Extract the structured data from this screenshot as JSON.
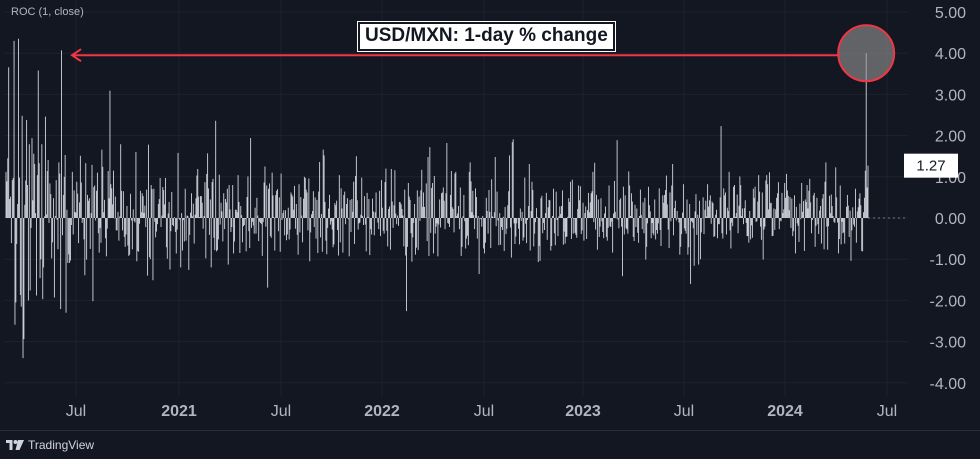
{
  "app": {
    "indicator_label": "ROC (1, close)",
    "brand": "TradingView"
  },
  "colors": {
    "background": "#131722",
    "bar": "#d1d4dc",
    "axis_text": "#b2b5be",
    "annotation": "#f23645",
    "grid": "#1e222d"
  },
  "chart_data": {
    "type": "bar",
    "title": "USD/MXN: 1-day % change",
    "ylim": [
      -4.3,
      5.0
    ],
    "y_ticks": [
      "5.00",
      "4.00",
      "3.00",
      "2.00",
      "1.00",
      "0.00",
      "-1.00",
      "-2.00",
      "-3.00",
      "-4.00"
    ],
    "x_ticks": [
      "Jul",
      "2021",
      "Jul",
      "2022",
      "Jul",
      "2023",
      "Jul",
      "2024",
      "Jul"
    ],
    "x_ticks_bold": [
      false,
      true,
      false,
      true,
      false,
      true,
      false,
      true,
      false
    ],
    "last_value_label": "1.27",
    "last_value": 1.27,
    "peak_value": 4.0,
    "zero_line": 0,
    "grid": true,
    "annotation": {
      "type": "arrow-to-left",
      "highlight": "peak",
      "arrow_target_value": 4.0
    },
    "series": [
      {
        "values": [
          1.12,
          0.89,
          1.45,
          3.66,
          0.46,
          0.52,
          -0.61,
          0.92,
          0.97,
          4.3,
          -2.59,
          -2.05,
          -0.63,
          0.34,
          4.35,
          0.98,
          -1.87,
          -2.15,
          2.48,
          -3.4,
          -2.94,
          0.32,
          0.91,
          2.38,
          0.8,
          -2.0,
          1.79,
          -1.76,
          -0.24,
          1.94,
          0.43,
          1.56,
          1.31,
          0.12,
          -1.88,
          1.04,
          3.58,
          1.33,
          -1.46,
          -1.0,
          1.79,
          -1.97,
          -1.2,
          0.04,
          2.46,
          0.09,
          1.14,
          1.41,
          -0.12,
          0.84,
          0.58,
          -0.98,
          -0.59,
          0.48,
          -1.93,
          0.05,
          0.92,
          -0.04,
          -0.76,
          1.35,
          1.08,
          -2.21,
          4.07,
          -0.42,
          0.56,
          1.0,
          1.53,
          -2.3,
          0.2,
          -1.09,
          -0.88,
          -1.09,
          -1.03,
          -0.17,
          1.12,
          -0.4,
          0.67,
          0.15,
          0.13,
          0.88,
          0.59,
          -0.61,
          0.38,
          1.51,
          0.86,
          -0.12,
          -0.03,
          -0.52,
          -1.39,
          1.33,
          -1.01,
          0.56,
          0.42,
          0.48,
          -0.75,
          0.12,
          1.29,
          -2.02,
          0.75,
          0.79,
          -0.06,
          0.66,
          1.1,
          -0.37,
          -0.84,
          -0.24,
          -0.6,
          1.66,
          1.24,
          0.14,
          0.44,
          -0.49,
          -0.93,
          -0.26,
          1.14,
          0.48,
          3.09,
          0.82,
          0.72,
          0.33,
          1.15,
          -0.01,
          0.52,
          -0.3,
          -0.3,
          0.15,
          -0.55,
          0.04,
          1.79,
          0.66,
          -0.3,
          0.65,
          -0.46,
          -0.7,
          -0.4,
          0.29,
          -0.67,
          -0.92,
          -0.89,
          0.59,
          -0.06,
          -0.76,
          0.21,
          -0.07,
          -0.11,
          1.6,
          -1.05,
          -0.8,
          -0.82,
          -0.14,
          0.66,
          0.14,
          0.6,
          0.53,
          0.12,
          0.3,
          -0.22,
          0.69,
          -1.4,
          1.78,
          -0.95,
          -1.0,
          0.8,
          0.7,
          -1.51,
          0.71,
          -0.09,
          -0.47,
          -0.33,
          -0.15,
          0.34,
          0.46,
          0.97,
          -0.22,
          0.06,
          0.75,
          0.68,
          0.33,
          0.97,
          -0.71,
          -0.99,
          0.11,
          0.39,
          -1.25,
          -0.32,
          0.63,
          -0.17,
          -0.2,
          0.02,
          -0.34,
          -0.86,
          -0.28,
          1.58,
          -0.02,
          -0.05,
          -1.2,
          0.12,
          -0.79,
          -0.05,
          -0.57,
          0.71,
          -0.55,
          0.06,
          0.05,
          -1.26,
          -0.41,
          0.13,
          0.6,
          0.04,
          0.35,
          -0.62,
          0.08,
          0.48,
          1.03,
          1.19,
          0.52,
          0.02,
          0.53,
          0.53,
          0.37,
          -0.26,
          0.05,
          0.87,
          -0.98,
          1.07,
          1.57,
          0.72,
          -0.41,
          0.45,
          -1.2,
          0.87,
          0.95,
          -0.48,
          -0.78,
          2.36,
          -0.81,
          -0.78,
          -0.52,
          1.05,
          -0.16,
          0.37,
          0.16,
          -0.57,
          0.6,
          -0.27,
          0.46,
          0.38,
          0.71,
          -1.13,
          0.8,
          0.21,
          -0.34,
          -0.22,
          0.8,
          -0.86,
          -0.57,
          0.2,
          0.2,
          0.14,
          1.04,
          0.39,
          -0.85,
          0.29,
          0.07,
          -0.59,
          -0.2,
          -0.17,
          -0.03,
          -0.81,
          0.51,
          1.01,
          -0.32,
          -0.73,
          1.94,
          -0.24,
          -0.09,
          -0.18,
          -0.38,
          0.25,
          -0.38,
          0.49,
          0.06,
          -0.56,
          -0.09,
          -0.12,
          -0.15,
          -0.92,
          -0.1,
          0.86,
          1.25,
          -0.21,
          0.79,
          -1.69,
          0.71,
          0.84,
          -0.44,
          -0.48,
          1.1,
          0.55,
          0.02,
          -0.79,
          0.56,
          0.66,
          0.7,
          -0.32,
          0.5,
          -0.82,
          1.08,
          -0.05,
          0.12,
          0.19,
          -0.42,
          0.19,
          -0.54,
          -0.4,
          0.25,
          -0.52,
          -0.28,
          0.62,
          0.57,
          0.52,
          0.2,
          0.78,
          -0.26,
          0.34,
          -0.41,
          -0.89,
          0.82,
          -0.35,
          0.51,
          0.06,
          -0.59,
          0.47,
          1.0,
          0.97,
          0.69,
          0.62,
          -0.3,
          0.96,
          -1.05,
          -0.35,
          0.09,
          0.17,
          0.65,
          -0.22,
          0.5,
          -0.5,
          0.44,
          -0.85,
          0.64,
          1.36,
          -0.47,
          0.1,
          -0.82,
          1.66,
          1.52,
          0.39,
          -0.55,
          -0.88,
          -0.24,
          0.23,
          0.56,
          -0.16,
          -0.08,
          -0.28,
          -0.71,
          -0.64,
          0.36,
          0.31,
          0.42,
          -0.29,
          -0.91,
          1.04,
          -0.59,
          0.72,
          0.23,
          -0.84,
          0.56,
          0.64,
          -0.15,
          0.34,
          0.48,
          -0.03,
          -0.93,
          0.44,
          -0.34,
          0.46,
          0.15,
          0.88,
          -0.63,
          1.02,
          1.5,
          0.43,
          -0.28,
          -0.13,
          -0.11,
          0.08,
          0.98,
          0.05,
          -0.17,
          0.53,
          -0.16,
          -0.81,
          0.61,
          0.02,
          0.46,
          -0.9,
          -0.27,
          -0.4,
          0.47,
          0.16,
          -0.42,
          0.14,
          0.62,
          0.01,
          -0.11,
          -0.27,
          0.66,
          -0.44,
          0.92,
          0.25,
          -0.31,
          -0.38,
          0.87,
          1.2,
          -0.31,
          -0.69,
          0.22,
          0.28,
          -0.77,
          1.19,
          0.4,
          -0.24,
          0.31,
          1.16,
          0.11,
          -0.15,
          0.06,
          -0.19,
          0.39,
          0.38,
          0.33,
          0.22,
          0.06,
          -0.69,
          0.69,
          -0.91,
          -2.26,
          -0.7,
          0.85,
          0.52,
          0.44,
          -0.37,
          -1.06,
          -0.47,
          -0.12,
          0.34,
          -0.89,
          -0.72,
          0.67,
          -0.78,
          0.52,
          -0.07,
          0.67,
          1.17,
          0.27,
          0.62,
          0.27,
          0.01,
          0.84,
          -0.56,
          1.48,
          -0.92,
          1.72,
          -0.36,
          0.73,
          0.85,
          -0.86,
          1.02,
          -0.38,
          -0.21,
          -0.13,
          -0.93,
          -0.16,
          0.45,
          -0.23,
          0.6,
          0.62,
          0.74,
          0.42,
          -0.27,
          0.6,
          1.82,
          -0.12,
          -0.14,
          -0.22,
          0.56,
          1.14,
          0.26,
          0.22,
          -0.35,
          1.08,
          1.12,
          0.05,
          0.11,
          0.29,
          -0.27,
          0.74,
          -0.92,
          -0.7,
          0.04,
          0.56,
          -0.08,
          -0.74,
          -0.5,
          -0.43,
          -0.66,
          1.12,
          1.35,
          0.89,
          0.14,
          0.66,
          0.07,
          -0.27,
          0.72,
          0.51,
          -0.5,
          0.05,
          -1.36,
          -0.01,
          -0.03,
          -0.21,
          0.05,
          -0.74,
          -0.86,
          -0.6,
          0.49,
          0.17,
          -0.38,
          0.68,
          0.15,
          -0.73,
          0.94,
          0.04,
          0.01,
          0.14,
          1.48,
          -0.2,
          0.64,
          -0.06,
          -0.66,
          0.12,
          -0.65,
          -0.22,
          -0.29,
          0.03,
          -0.8,
          0.27,
          -0.39,
          -0.26,
          0.31,
          0.65,
          1.52,
          -0.23,
          -0.96,
          1.84,
          1.91,
          -0.13,
          -0.63,
          -0.45,
          -0.13,
          -0.01,
          -0.26,
          -0.64,
          0.23,
          -0.07,
          0.15,
          -0.55,
          -0.47,
          0.98,
          -0.14,
          -0.61,
          -0.05,
          0.29,
          1.31,
          -0.79,
          0.17,
          0.88,
          0.68,
          -0.69,
          -0.38,
          -0.1,
          0.24,
          0.02,
          -1.07,
          -0.68,
          -1.04,
          0.48,
          0.54,
          -0.37,
          -0.12,
          -0.29,
          0.12,
          0.61,
          -0.53,
          0.26,
          0.44,
          0.43,
          -0.79,
          -0.68,
          0.05,
          0.71,
          -0.37,
          -0.66,
          0.64,
          -0.05,
          -0.44,
          0.04,
          0.28,
          0.1,
          0.29,
          0.67,
          -0.65,
          -0.33,
          -0.62,
          -0.46,
          -0.45,
          0.03,
          0.48,
          0.39,
          0.88,
          -0.51,
          0.93,
          -0.38,
          -0.02,
          -0.36,
          -0.41,
          -0.48,
          0.22,
          0.79,
          0.43,
          0.77,
          -0.39,
          -0.3,
          0.37,
          -0.55,
          0.12,
          0.28,
          -0.51,
          0.19,
          0.61,
          0.14,
          0.38,
          0.6,
          0.65,
          1.12,
          -0.1,
          1.34,
          -0.28,
          0.56,
          -0.77,
          0.45,
          -0.46,
          -0.21,
          0.48,
          -0.08,
          -0.34,
          -0.49,
          0.11,
          0.28,
          -0.46,
          -0.55,
          -0.24,
          0.79,
          -0.2,
          -0.22,
          -0.09,
          -0.84,
          0.11,
          0.9,
          0.15,
          -0.01,
          1.89,
          -0.04,
          -0.25,
          0.44,
          0.48,
          -0.21,
          -1.41,
          0.76,
          -0.4,
          0.55,
          -0.25,
          -0.28,
          -0.38,
          1.13,
          0.79,
          0.05,
          0.6,
          0.4,
          -0.46,
          -0.56,
          0.32,
          -0.22,
          0.23,
          -0.36,
          -0.6,
          0.05,
          0.69,
          0.07,
          -0.27,
          0.38,
          -0.37,
          0.49,
          -1.01,
          -0.7,
          -0.13,
          0.76,
          0.31,
          0.16,
          -0.49,
          -0.12,
          -0.37,
          -0.42,
          0.45,
          -0.52,
          -0.29,
          -0.38,
          -0.13,
          0.72,
          -0.29,
          -0.68,
          -0.01,
          0.55,
          0.37,
          0.56,
          0.68,
          1.03,
          0.33,
          -0.28,
          -0.73,
          0.62,
          -0.08,
          0.79,
          1.31,
          -0.42,
          0.24,
          0.42,
          -0.06,
          0.17,
          -0.02,
          -0.11,
          -0.89,
          -0.7,
          -0.39,
          0.13,
          0.82,
          -0.25,
          -0.31,
          -0.38,
          0.45,
          -0.89,
          -0.71,
          0.34,
          -1.6,
          -0.08,
          -0.11,
          -0.25,
          -1.16,
          0.16,
          0.58,
          -0.41,
          0.08,
          -1.13,
          0.42,
          -1.0,
          -0.35,
          -0.01,
          0.5,
          -0.39,
          0.2,
          0.42,
          0.04,
          0.82,
          0.28,
          0.43,
          0.55,
          -0.14,
          0.4,
          0.36,
          -0.46,
          -0.44,
          0.08,
          0.2,
          -0.49,
          -0.15,
          -0.15,
          0.5,
          2.23,
          -0.37,
          -0.5,
          0.72,
          0.55,
          0.62,
          -0.4,
          0.25,
          0.17,
          1.12,
          -0.3,
          -0.74,
          -0.11,
          -0.2,
          0.76,
          0.8,
          0.03,
          0.12,
          0.57,
          -0.37,
          0.3,
          1.01,
          0.8,
          0.05,
          0.23,
          -0.15,
          0.24,
          0.43,
          -0.12,
          -0.44,
          -0.44,
          -0.6,
          0.17,
          -0.52,
          -0.18,
          -0.48,
          0.71,
          0.49,
          0.76,
          -0.09,
          -0.08,
          0.4,
          1.04,
          0.64,
          -0.21,
          -0.53,
          0.62,
          -1.01,
          -0.28,
          -0.21,
          0.91,
          1.04,
          0.82,
          0.21,
          1.11,
          0.36,
          0.37,
          -0.44,
          -0.43,
          0.23,
          -0.29,
          0.21,
          0.49,
          0.6,
          0.87,
          -0.27,
          -0.06,
          -0.08,
          0.61,
          0.12,
          0.21,
          0.85,
          0.49,
          1.07,
          0.67,
          0.54,
          0.19,
          0.51,
          -0.24,
          0.47,
          -0.44,
          -0.32,
          0.55,
          -0.86,
          0.27,
          -0.13,
          -0.19,
          -0.58,
          0.35,
          -0.03,
          0.85,
          0.15,
          0.41,
          -0.8,
          0.45,
          0.39,
          0.8,
          0.23,
          0.66,
          0.95,
          0.38,
          -0.37,
          -0.05,
          0.55,
          0.61,
          -0.7,
          -0.19,
          0.49,
          -0.15,
          -0.39,
          0.18,
          0.29,
          -0.62,
          0.47,
          0.58,
          -0.76,
          0.88,
          1.35,
          -0.21,
          -0.77,
          -0.2,
          0.54,
          0.12,
          0.57,
          0.29,
          0.05,
          -0.09,
          -0.12,
          1.23,
          0.5,
          -0.11,
          -0.86,
          -0.51,
          0.79,
          -0.64,
          -0.09,
          -0.37,
          -0.35,
          -0.62,
          0.0,
          0.27,
          0.56,
          0.3,
          -0.46,
          0.18,
          -1.04,
          -0.3,
          0.26,
          -0.16,
          -0.21,
          0.71,
          -0.6,
          0.16,
          0.26,
          0.47,
          0.6,
          0.31,
          -0.8,
          -0.81,
          0.14,
          0.49,
          1.15,
          4.0,
          0.74,
          1.27
        ]
      }
    ]
  }
}
